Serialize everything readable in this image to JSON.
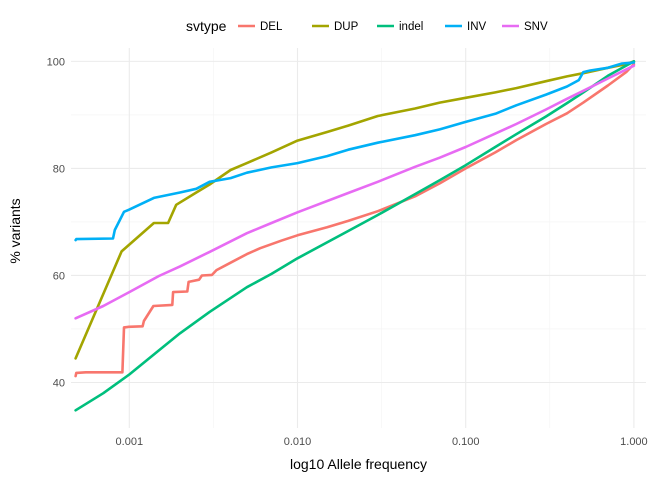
{
  "chart_data": {
    "type": "line",
    "xlabel": "log10 Allele frequency",
    "ylabel": "% variants",
    "x_scale": "log10",
    "xlim": [
      0.00045,
      1.18
    ],
    "ylim": [
      31.5,
      102.5
    ],
    "x_ticks": [
      {
        "value": 0.001,
        "label": "0.001"
      },
      {
        "value": 0.01,
        "label": "0.010"
      },
      {
        "value": 0.1,
        "label": "0.100"
      },
      {
        "value": 1,
        "label": "1.000"
      }
    ],
    "y_ticks": [
      {
        "value": 40,
        "label": "40"
      },
      {
        "value": 60,
        "label": "60"
      },
      {
        "value": 80,
        "label": "80"
      },
      {
        "value": 100,
        "label": "100"
      }
    ],
    "grid": true,
    "legend": {
      "title": "svtype",
      "position": "top"
    },
    "series": [
      {
        "name": "DEL",
        "color": "#F8766D",
        "points": [
          [
            0.000479,
            41.2
          ],
          [
            0.000484,
            41.8
          ],
          [
            0.00055,
            41.9
          ],
          [
            0.00091,
            41.9
          ],
          [
            0.00093,
            50.3
          ],
          [
            0.00099,
            50.4
          ],
          [
            0.0012,
            50.5
          ],
          [
            0.00122,
            51.5
          ],
          [
            0.00139,
            54.3
          ],
          [
            0.0018,
            54.5
          ],
          [
            0.00182,
            56.9
          ],
          [
            0.00221,
            57.0
          ],
          [
            0.00225,
            58.8
          ],
          [
            0.0026,
            59.2
          ],
          [
            0.0027,
            60.0
          ],
          [
            0.0031,
            60.1
          ],
          [
            0.0033,
            61.0
          ],
          [
            0.0039,
            62.2
          ],
          [
            0.005,
            64.0
          ],
          [
            0.006,
            65.1
          ],
          [
            0.008,
            66.5
          ],
          [
            0.01,
            67.5
          ],
          [
            0.015,
            69.0
          ],
          [
            0.02,
            70.2
          ],
          [
            0.03,
            72.0
          ],
          [
            0.05,
            74.8
          ],
          [
            0.07,
            77.2
          ],
          [
            0.1,
            80.0
          ],
          [
            0.15,
            83.0
          ],
          [
            0.2,
            85.3
          ],
          [
            0.3,
            88.3
          ],
          [
            0.4,
            90.3
          ],
          [
            0.5,
            92.3
          ],
          [
            0.7,
            95.5
          ],
          [
            0.9,
            98.0
          ],
          [
            1.0,
            99.5
          ]
        ]
      },
      {
        "name": "DUP",
        "color": "#A3A500",
        "points": [
          [
            0.000479,
            44.5
          ],
          [
            0.0009,
            64.5
          ],
          [
            0.0014,
            69.8
          ],
          [
            0.0017,
            69.8
          ],
          [
            0.0019,
            73.2
          ],
          [
            0.0025,
            75.5
          ],
          [
            0.003,
            77.0
          ],
          [
            0.004,
            79.7
          ],
          [
            0.005,
            81.0
          ],
          [
            0.007,
            83.0
          ],
          [
            0.01,
            85.2
          ],
          [
            0.015,
            86.8
          ],
          [
            0.02,
            88.0
          ],
          [
            0.03,
            89.8
          ],
          [
            0.05,
            91.2
          ],
          [
            0.07,
            92.3
          ],
          [
            0.1,
            93.2
          ],
          [
            0.15,
            94.2
          ],
          [
            0.2,
            95.0
          ],
          [
            0.3,
            96.3
          ],
          [
            0.4,
            97.2
          ],
          [
            0.5,
            97.8
          ],
          [
            0.7,
            98.8
          ],
          [
            0.9,
            99.5
          ],
          [
            1.0,
            100.0
          ]
        ]
      },
      {
        "name": "indel",
        "color": "#00BF7D",
        "points": [
          [
            0.000479,
            34.8
          ],
          [
            0.0007,
            38.0
          ],
          [
            0.001,
            41.5
          ],
          [
            0.0015,
            46.0
          ],
          [
            0.002,
            49.2
          ],
          [
            0.003,
            53.2
          ],
          [
            0.005,
            57.8
          ],
          [
            0.007,
            60.3
          ],
          [
            0.01,
            63.2
          ],
          [
            0.02,
            68.3
          ],
          [
            0.03,
            71.3
          ],
          [
            0.05,
            75.2
          ],
          [
            0.07,
            77.8
          ],
          [
            0.1,
            80.6
          ],
          [
            0.15,
            84.0
          ],
          [
            0.2,
            86.4
          ],
          [
            0.3,
            89.7
          ],
          [
            0.4,
            92.2
          ],
          [
            0.5,
            94.2
          ],
          [
            0.7,
            97.3
          ],
          [
            1.0,
            100.0
          ]
        ]
      },
      {
        "name": "INV",
        "color": "#00B0F6",
        "points": [
          [
            0.000479,
            66.6
          ],
          [
            0.000484,
            66.8
          ],
          [
            0.0008,
            66.9
          ],
          [
            0.00082,
            68.5
          ],
          [
            0.00093,
            71.9
          ],
          [
            0.001,
            72.3
          ],
          [
            0.0014,
            74.5
          ],
          [
            0.002,
            75.5
          ],
          [
            0.0025,
            76.2
          ],
          [
            0.003,
            77.5
          ],
          [
            0.004,
            78.2
          ],
          [
            0.005,
            79.2
          ],
          [
            0.007,
            80.2
          ],
          [
            0.01,
            81.0
          ],
          [
            0.015,
            82.3
          ],
          [
            0.02,
            83.5
          ],
          [
            0.03,
            84.8
          ],
          [
            0.05,
            86.2
          ],
          [
            0.07,
            87.3
          ],
          [
            0.1,
            88.7
          ],
          [
            0.15,
            90.2
          ],
          [
            0.2,
            91.8
          ],
          [
            0.3,
            93.8
          ],
          [
            0.4,
            95.3
          ],
          [
            0.47,
            96.5
          ],
          [
            0.5,
            98.0
          ],
          [
            0.55,
            98.3
          ],
          [
            0.7,
            98.8
          ],
          [
            0.85,
            99.6
          ],
          [
            1.0,
            99.8
          ]
        ]
      },
      {
        "name": "SNV",
        "color": "#E76BF3",
        "points": [
          [
            0.000479,
            52.0
          ],
          [
            0.0007,
            54.3
          ],
          [
            0.001,
            56.9
          ],
          [
            0.0015,
            59.9
          ],
          [
            0.002,
            61.7
          ],
          [
            0.003,
            64.4
          ],
          [
            0.005,
            67.9
          ],
          [
            0.007,
            69.8
          ],
          [
            0.01,
            71.8
          ],
          [
            0.02,
            75.4
          ],
          [
            0.03,
            77.5
          ],
          [
            0.05,
            80.3
          ],
          [
            0.07,
            82.0
          ],
          [
            0.1,
            84.0
          ],
          [
            0.15,
            86.5
          ],
          [
            0.2,
            88.3
          ],
          [
            0.3,
            91.0
          ],
          [
            0.4,
            93.0
          ],
          [
            0.5,
            94.5
          ],
          [
            0.7,
            96.8
          ],
          [
            1.0,
            99.2
          ]
        ]
      }
    ]
  }
}
